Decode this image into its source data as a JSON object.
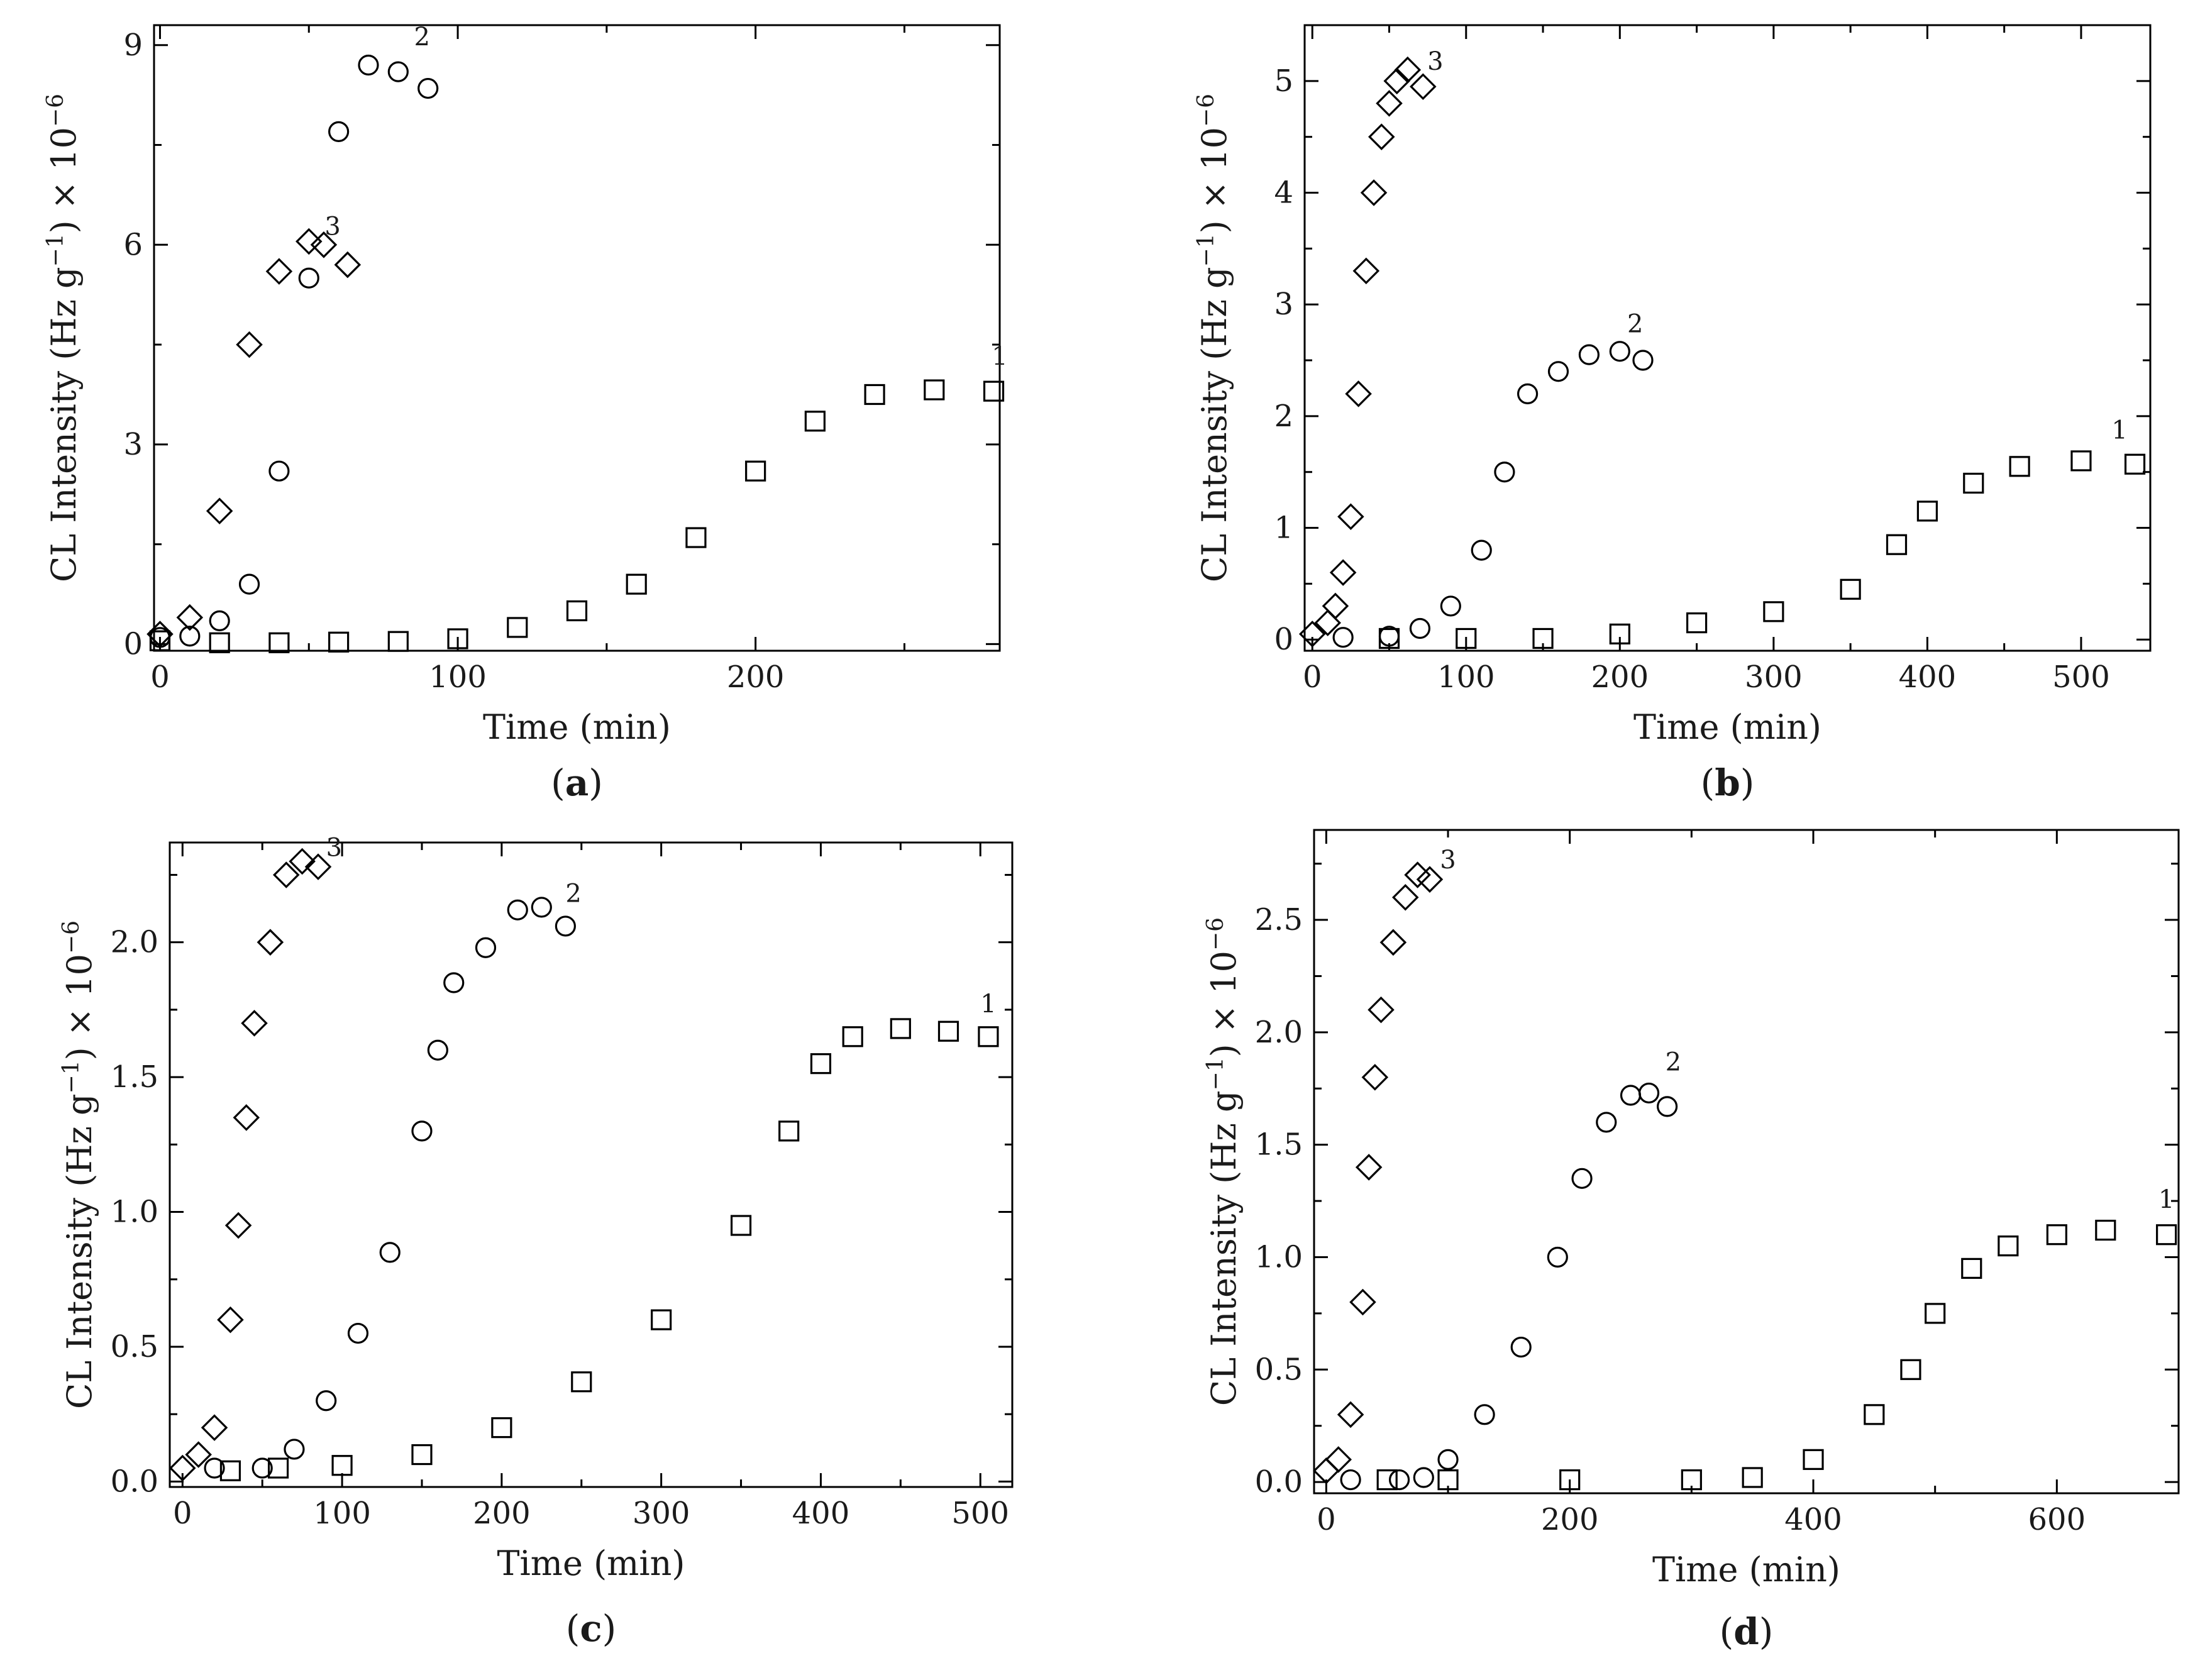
{
  "figure": {
    "panels": [
      {
        "caption_letter": "a",
        "xlabel": "Time (min)",
        "ylabel": "CL Intensity (Hz g<sup>−1</sup>) × 10<sup>−6</sup>"
      },
      {
        "caption_letter": "b",
        "xlabel": "Time (min)",
        "ylabel": "CL Intensity (Hz g<sup>−1</sup>) × 10<sup>−6</sup>"
      },
      {
        "caption_letter": "c",
        "xlabel": "Time (min)",
        "ylabel": "CL Intensity (Hz g<sup>−1</sup>) × 10<sup>−6</sup>"
      },
      {
        "caption_letter": "d",
        "xlabel": "Time (min)",
        "ylabel": "CL Intensity (Hz g<sup>−1</sup>) × 10<sup>−6</sup>"
      }
    ]
  },
  "chart_data": [
    {
      "type": "scatter",
      "panel": "a",
      "xlabel": "Time (min)",
      "ylabel": "CL Intensity (Hz g−1) × 10−6",
      "xlim": [
        -2,
        282
      ],
      "ylim": [
        -0.1,
        9.3
      ],
      "xticks": [
        0,
        100,
        200
      ],
      "yticks": [
        0,
        3,
        6,
        9
      ],
      "series": [
        {
          "name": "1",
          "marker": "square",
          "points": [
            [
              0,
              0.05
            ],
            [
              20,
              0.02
            ],
            [
              40,
              0.02
            ],
            [
              60,
              0.03
            ],
            [
              80,
              0.04
            ],
            [
              100,
              0.08
            ],
            [
              120,
              0.25
            ],
            [
              140,
              0.5
            ],
            [
              160,
              0.9
            ],
            [
              180,
              1.6
            ],
            [
              200,
              2.6
            ],
            [
              220,
              3.35
            ],
            [
              240,
              3.75
            ],
            [
              260,
              3.82
            ],
            [
              280,
              3.8
            ]
          ]
        },
        {
          "name": "2",
          "marker": "circle",
          "points": [
            [
              0,
              0.1
            ],
            [
              10,
              0.12
            ],
            [
              20,
              0.35
            ],
            [
              30,
              0.9
            ],
            [
              40,
              2.6
            ],
            [
              50,
              5.5
            ],
            [
              60,
              7.7
            ],
            [
              70,
              8.7
            ],
            [
              80,
              8.6
            ],
            [
              90,
              8.35
            ]
          ]
        },
        {
          "name": "3",
          "marker": "diamond",
          "points": [
            [
              0,
              0.15
            ],
            [
              10,
              0.4
            ],
            [
              20,
              2.0
            ],
            [
              30,
              4.5
            ],
            [
              40,
              5.6
            ],
            [
              50,
              6.05
            ],
            [
              55,
              6.0
            ],
            [
              63,
              5.7
            ]
          ]
        }
      ],
      "curve_labels": [
        {
          "text": "1",
          "x": 282,
          "y": 4.2
        },
        {
          "text": "2",
          "x": 88,
          "y": 9.0
        },
        {
          "text": "3",
          "x": 58,
          "y": 6.15
        }
      ]
    },
    {
      "type": "scatter",
      "panel": "b",
      "xlabel": "Time (min)",
      "ylabel": "CL Intensity (Hz g−1) × 10−6",
      "xlim": [
        -5,
        545
      ],
      "ylim": [
        -0.1,
        5.5
      ],
      "xticks": [
        0,
        100,
        200,
        300,
        400,
        500
      ],
      "yticks": [
        0,
        1,
        2,
        3,
        4,
        5
      ],
      "series": [
        {
          "name": "1",
          "marker": "square",
          "points": [
            [
              50,
              0.01
            ],
            [
              100,
              0.01
            ],
            [
              150,
              0.01
            ],
            [
              200,
              0.05
            ],
            [
              250,
              0.15
            ],
            [
              300,
              0.25
            ],
            [
              350,
              0.45
            ],
            [
              380,
              0.85
            ],
            [
              400,
              1.15
            ],
            [
              430,
              1.4
            ],
            [
              460,
              1.55
            ],
            [
              500,
              1.6
            ],
            [
              535,
              1.57
            ]
          ]
        },
        {
          "name": "2",
          "marker": "circle",
          "points": [
            [
              20,
              0.02
            ],
            [
              50,
              0.03
            ],
            [
              70,
              0.1
            ],
            [
              90,
              0.3
            ],
            [
              110,
              0.8
            ],
            [
              125,
              1.5
            ],
            [
              140,
              2.2
            ],
            [
              160,
              2.4
            ],
            [
              180,
              2.55
            ],
            [
              200,
              2.58
            ],
            [
              215,
              2.5
            ]
          ]
        },
        {
          "name": "3",
          "marker": "diamond",
          "points": [
            [
              0,
              0.05
            ],
            [
              10,
              0.15
            ],
            [
              15,
              0.3
            ],
            [
              20,
              0.6
            ],
            [
              25,
              1.1
            ],
            [
              30,
              2.2
            ],
            [
              35,
              3.3
            ],
            [
              40,
              4.0
            ],
            [
              45,
              4.5
            ],
            [
              50,
              4.8
            ],
            [
              55,
              5.0
            ],
            [
              62,
              5.1
            ],
            [
              72,
              4.95
            ]
          ]
        }
      ],
      "curve_labels": [
        {
          "text": "1",
          "x": 525,
          "y": 1.8
        },
        {
          "text": "2",
          "x": 210,
          "y": 2.75
        },
        {
          "text": "3",
          "x": 80,
          "y": 5.1
        }
      ]
    },
    {
      "type": "scatter",
      "panel": "c",
      "xlabel": "Time (min)",
      "ylabel": "CL Intensity (Hz g−1) × 10−6",
      "xlim": [
        -8,
        520
      ],
      "ylim": [
        -0.02,
        2.37
      ],
      "xticks": [
        0,
        100,
        200,
        300,
        400,
        500
      ],
      "yticks": [
        0.0,
        0.5,
        1.0,
        1.5,
        2.0
      ],
      "ytick_labels": [
        "0.0",
        "0.5",
        "1.0",
        "1.5",
        "2.0"
      ],
      "series": [
        {
          "name": "1",
          "marker": "square",
          "points": [
            [
              30,
              0.04
            ],
            [
              60,
              0.05
            ],
            [
              100,
              0.06
            ],
            [
              150,
              0.1
            ],
            [
              200,
              0.2
            ],
            [
              250,
              0.37
            ],
            [
              300,
              0.6
            ],
            [
              350,
              0.95
            ],
            [
              380,
              1.3
            ],
            [
              400,
              1.55
            ],
            [
              420,
              1.65
            ],
            [
              450,
              1.68
            ],
            [
              480,
              1.67
            ],
            [
              505,
              1.65
            ]
          ]
        },
        {
          "name": "2",
          "marker": "circle",
          "points": [
            [
              20,
              0.05
            ],
            [
              50,
              0.05
            ],
            [
              70,
              0.12
            ],
            [
              90,
              0.3
            ],
            [
              110,
              0.55
            ],
            [
              130,
              0.85
            ],
            [
              150,
              1.3
            ],
            [
              160,
              1.6
            ],
            [
              170,
              1.85
            ],
            [
              190,
              1.98
            ],
            [
              210,
              2.12
            ],
            [
              225,
              2.13
            ],
            [
              240,
              2.06
            ]
          ]
        },
        {
          "name": "3",
          "marker": "diamond",
          "points": [
            [
              0,
              0.05
            ],
            [
              10,
              0.1
            ],
            [
              20,
              0.2
            ],
            [
              30,
              0.6
            ],
            [
              35,
              0.95
            ],
            [
              40,
              1.35
            ],
            [
              45,
              1.7
            ],
            [
              55,
              2.0
            ],
            [
              65,
              2.25
            ],
            [
              75,
              2.3
            ],
            [
              85,
              2.28
            ]
          ]
        }
      ],
      "curve_labels": [
        {
          "text": "1",
          "x": 505,
          "y": 1.74
        },
        {
          "text": "2",
          "x": 245,
          "y": 2.15
        },
        {
          "text": "3",
          "x": 95,
          "y": 2.32
        }
      ]
    },
    {
      "type": "scatter",
      "panel": "d",
      "xlabel": "Time (min)",
      "ylabel": "CL Intensity (Hz g−1) × 10−6",
      "xlim": [
        -10,
        700
      ],
      "ylim": [
        -0.05,
        2.9
      ],
      "xticks": [
        0,
        200,
        400,
        600
      ],
      "yticks": [
        0.0,
        0.5,
        1.0,
        1.5,
        2.0,
        2.5
      ],
      "ytick_labels": [
        "0.0",
        "0.5",
        "1.0",
        "1.5",
        "2.0",
        "2.5"
      ],
      "series": [
        {
          "name": "1",
          "marker": "square",
          "points": [
            [
              50,
              0.01
            ],
            [
              100,
              0.01
            ],
            [
              200,
              0.01
            ],
            [
              300,
              0.01
            ],
            [
              350,
              0.02
            ],
            [
              400,
              0.1
            ],
            [
              450,
              0.3
            ],
            [
              480,
              0.5
            ],
            [
              500,
              0.75
            ],
            [
              530,
              0.95
            ],
            [
              560,
              1.05
            ],
            [
              600,
              1.1
            ],
            [
              640,
              1.12
            ],
            [
              690,
              1.1
            ]
          ]
        },
        {
          "name": "2",
          "marker": "circle",
          "points": [
            [
              20,
              0.01
            ],
            [
              60,
              0.01
            ],
            [
              80,
              0.02
            ],
            [
              100,
              0.1
            ],
            [
              130,
              0.3
            ],
            [
              160,
              0.6
            ],
            [
              190,
              1.0
            ],
            [
              210,
              1.35
            ],
            [
              230,
              1.6
            ],
            [
              250,
              1.72
            ],
            [
              265,
              1.73
            ],
            [
              280,
              1.67
            ]
          ]
        },
        {
          "name": "3",
          "marker": "diamond",
          "points": [
            [
              0,
              0.05
            ],
            [
              10,
              0.1
            ],
            [
              20,
              0.3
            ],
            [
              30,
              0.8
            ],
            [
              35,
              1.4
            ],
            [
              40,
              1.8
            ],
            [
              45,
              2.1
            ],
            [
              55,
              2.4
            ],
            [
              65,
              2.6
            ],
            [
              75,
              2.7
            ],
            [
              85,
              2.68
            ]
          ]
        }
      ],
      "curve_labels": [
        {
          "text": "1",
          "x": 690,
          "y": 1.22
        },
        {
          "text": "2",
          "x": 285,
          "y": 1.83
        },
        {
          "text": "3",
          "x": 100,
          "y": 2.73
        }
      ]
    }
  ]
}
